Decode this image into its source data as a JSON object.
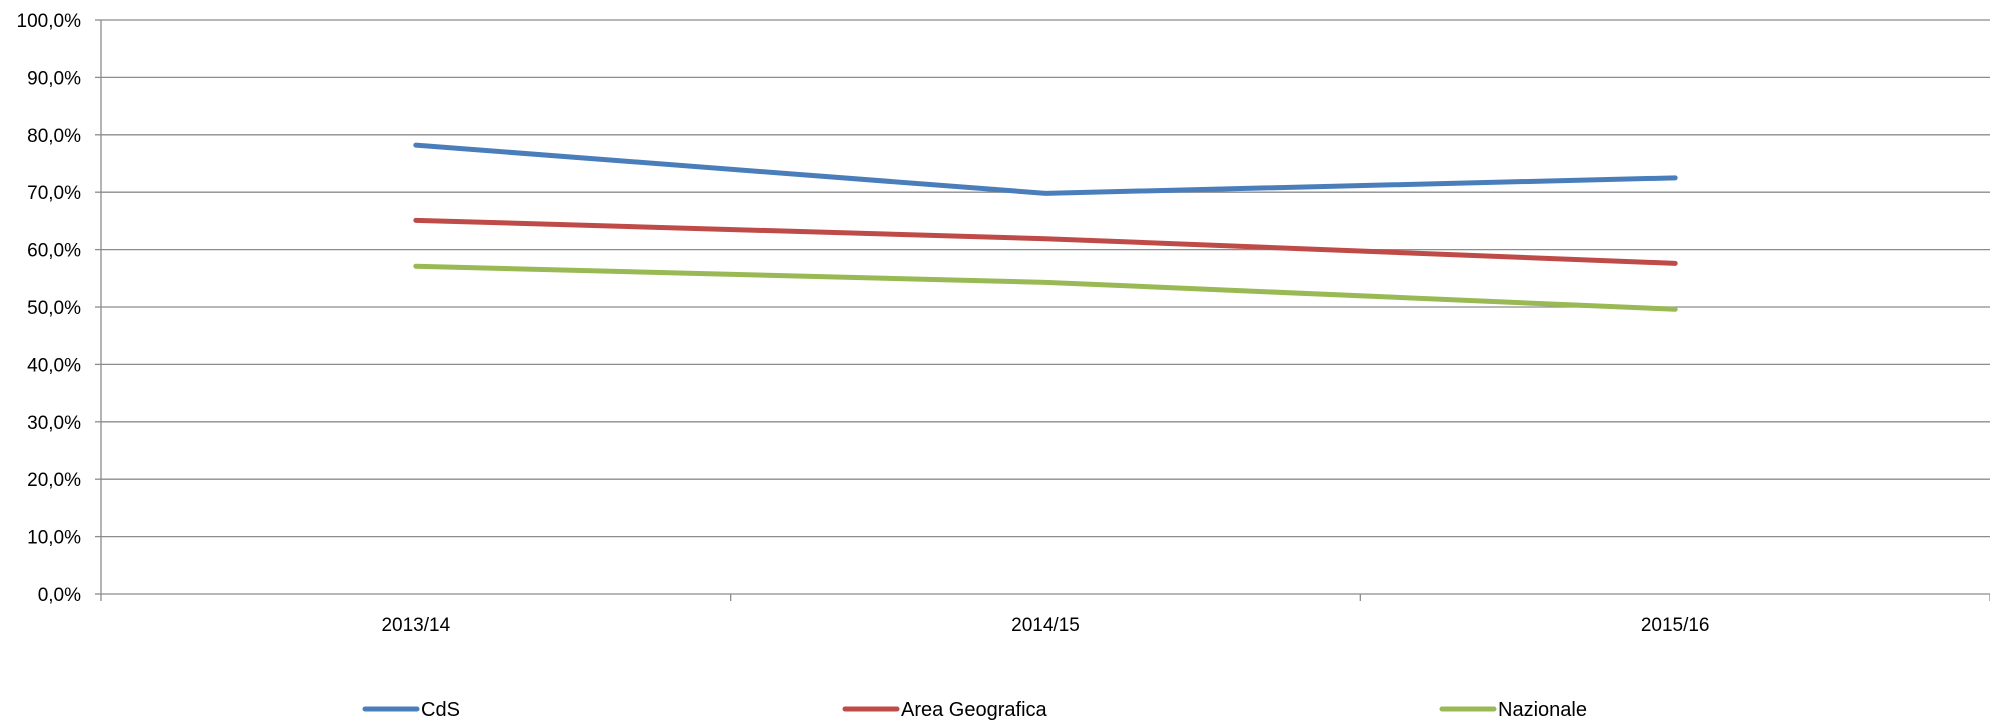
{
  "chart_data": {
    "type": "line",
    "title": "",
    "xlabel": "",
    "ylabel": "",
    "categories": [
      "2013/14",
      "2014/15",
      "2015/16"
    ],
    "ylim": [
      0,
      100
    ],
    "y_ticks": [
      "0,0%",
      "10,0%",
      "20,0%",
      "30,0%",
      "40,0%",
      "50,0%",
      "60,0%",
      "70,0%",
      "80,0%",
      "90,0%",
      "100,0%"
    ],
    "y_tick_values": [
      0,
      10,
      20,
      30,
      40,
      50,
      60,
      70,
      80,
      90,
      100
    ],
    "y_unit": "%",
    "grid": true,
    "legend_position": "bottom",
    "series": [
      {
        "name": "CdS",
        "color": "#4a7ebb",
        "values": [
          78.2,
          69.8,
          72.5
        ]
      },
      {
        "name": "Area Geografica",
        "color": "#be4b48",
        "values": [
          65.1,
          61.9,
          57.6
        ]
      },
      {
        "name": "Nazionale",
        "color": "#98b954",
        "values": [
          57.1,
          54.3,
          49.6
        ]
      }
    ]
  }
}
